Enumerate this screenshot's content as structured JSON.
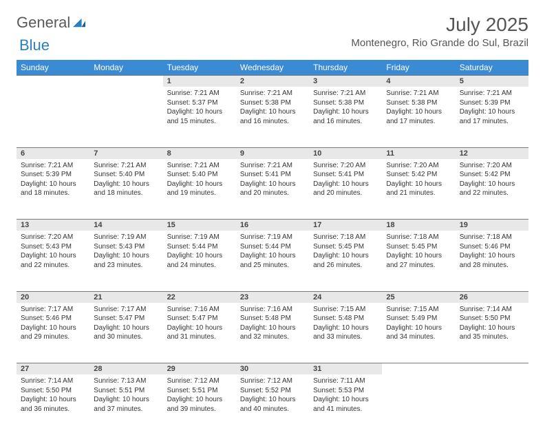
{
  "brand": {
    "part1": "General",
    "part2": "Blue"
  },
  "title": "July 2025",
  "location": "Montenegro, Rio Grande do Sul, Brazil",
  "colors": {
    "header_bg": "#3b8bd4",
    "header_fg": "#ffffff",
    "daynum_bg": "#e8e8e8",
    "border": "#7a7a7a",
    "logo_gray": "#5a5a5a",
    "logo_blue": "#2a7fbf"
  },
  "weekdays": [
    "Sunday",
    "Monday",
    "Tuesday",
    "Wednesday",
    "Thursday",
    "Friday",
    "Saturday"
  ],
  "grid": {
    "first_weekday_index": 2,
    "days_in_month": 31
  },
  "days": {
    "1": {
      "sunrise": "7:21 AM",
      "sunset": "5:37 PM",
      "daylight": "10 hours and 15 minutes."
    },
    "2": {
      "sunrise": "7:21 AM",
      "sunset": "5:38 PM",
      "daylight": "10 hours and 16 minutes."
    },
    "3": {
      "sunrise": "7:21 AM",
      "sunset": "5:38 PM",
      "daylight": "10 hours and 16 minutes."
    },
    "4": {
      "sunrise": "7:21 AM",
      "sunset": "5:38 PM",
      "daylight": "10 hours and 17 minutes."
    },
    "5": {
      "sunrise": "7:21 AM",
      "sunset": "5:39 PM",
      "daylight": "10 hours and 17 minutes."
    },
    "6": {
      "sunrise": "7:21 AM",
      "sunset": "5:39 PM",
      "daylight": "10 hours and 18 minutes."
    },
    "7": {
      "sunrise": "7:21 AM",
      "sunset": "5:40 PM",
      "daylight": "10 hours and 18 minutes."
    },
    "8": {
      "sunrise": "7:21 AM",
      "sunset": "5:40 PM",
      "daylight": "10 hours and 19 minutes."
    },
    "9": {
      "sunrise": "7:21 AM",
      "sunset": "5:41 PM",
      "daylight": "10 hours and 20 minutes."
    },
    "10": {
      "sunrise": "7:20 AM",
      "sunset": "5:41 PM",
      "daylight": "10 hours and 20 minutes."
    },
    "11": {
      "sunrise": "7:20 AM",
      "sunset": "5:42 PM",
      "daylight": "10 hours and 21 minutes."
    },
    "12": {
      "sunrise": "7:20 AM",
      "sunset": "5:42 PM",
      "daylight": "10 hours and 22 minutes."
    },
    "13": {
      "sunrise": "7:20 AM",
      "sunset": "5:43 PM",
      "daylight": "10 hours and 22 minutes."
    },
    "14": {
      "sunrise": "7:19 AM",
      "sunset": "5:43 PM",
      "daylight": "10 hours and 23 minutes."
    },
    "15": {
      "sunrise": "7:19 AM",
      "sunset": "5:44 PM",
      "daylight": "10 hours and 24 minutes."
    },
    "16": {
      "sunrise": "7:19 AM",
      "sunset": "5:44 PM",
      "daylight": "10 hours and 25 minutes."
    },
    "17": {
      "sunrise": "7:18 AM",
      "sunset": "5:45 PM",
      "daylight": "10 hours and 26 minutes."
    },
    "18": {
      "sunrise": "7:18 AM",
      "sunset": "5:45 PM",
      "daylight": "10 hours and 27 minutes."
    },
    "19": {
      "sunrise": "7:18 AM",
      "sunset": "5:46 PM",
      "daylight": "10 hours and 28 minutes."
    },
    "20": {
      "sunrise": "7:17 AM",
      "sunset": "5:46 PM",
      "daylight": "10 hours and 29 minutes."
    },
    "21": {
      "sunrise": "7:17 AM",
      "sunset": "5:47 PM",
      "daylight": "10 hours and 30 minutes."
    },
    "22": {
      "sunrise": "7:16 AM",
      "sunset": "5:47 PM",
      "daylight": "10 hours and 31 minutes."
    },
    "23": {
      "sunrise": "7:16 AM",
      "sunset": "5:48 PM",
      "daylight": "10 hours and 32 minutes."
    },
    "24": {
      "sunrise": "7:15 AM",
      "sunset": "5:48 PM",
      "daylight": "10 hours and 33 minutes."
    },
    "25": {
      "sunrise": "7:15 AM",
      "sunset": "5:49 PM",
      "daylight": "10 hours and 34 minutes."
    },
    "26": {
      "sunrise": "7:14 AM",
      "sunset": "5:50 PM",
      "daylight": "10 hours and 35 minutes."
    },
    "27": {
      "sunrise": "7:14 AM",
      "sunset": "5:50 PM",
      "daylight": "10 hours and 36 minutes."
    },
    "28": {
      "sunrise": "7:13 AM",
      "sunset": "5:51 PM",
      "daylight": "10 hours and 37 minutes."
    },
    "29": {
      "sunrise": "7:12 AM",
      "sunset": "5:51 PM",
      "daylight": "10 hours and 39 minutes."
    },
    "30": {
      "sunrise": "7:12 AM",
      "sunset": "5:52 PM",
      "daylight": "10 hours and 40 minutes."
    },
    "31": {
      "sunrise": "7:11 AM",
      "sunset": "5:53 PM",
      "daylight": "10 hours and 41 minutes."
    }
  },
  "labels": {
    "sunrise": "Sunrise:",
    "sunset": "Sunset:",
    "daylight": "Daylight:"
  }
}
